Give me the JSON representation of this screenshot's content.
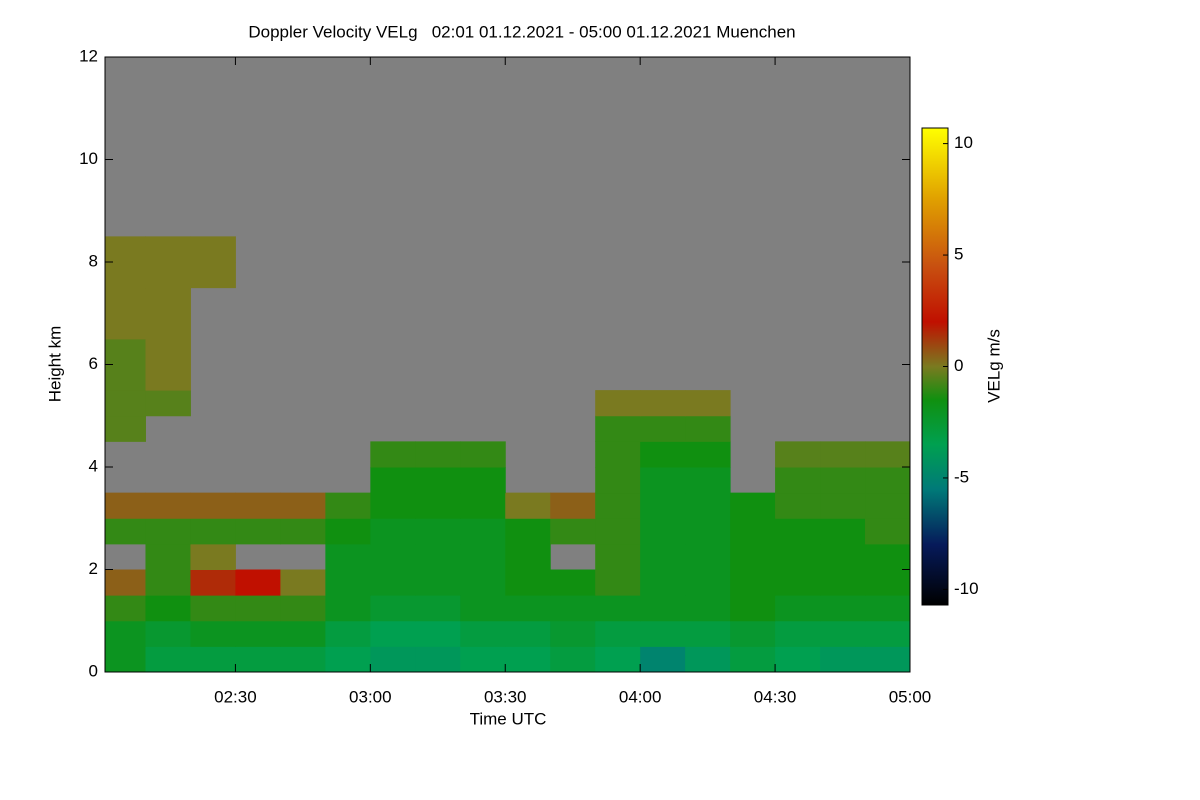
{
  "chart_data": {
    "type": "heatmap",
    "title": "Doppler Velocity VELg   02:01 01.12.2021 - 05:00 01.12.2021 Muenchen",
    "x_label": "Time UTC",
    "y_label": "Height km",
    "colorbar_label": "VELg m/s",
    "background_color": "#808080",
    "xlim": [
      121,
      300
    ],
    "xticks": [
      {
        "value": 150,
        "label": "02:30"
      },
      {
        "value": 180,
        "label": "03:00"
      },
      {
        "value": 210,
        "label": "03:30"
      },
      {
        "value": 240,
        "label": "04:00"
      },
      {
        "value": 270,
        "label": "04:30"
      },
      {
        "value": 300,
        "label": "05:00"
      }
    ],
    "ylim": [
      0,
      12
    ],
    "yticks": [
      0,
      2,
      4,
      6,
      8,
      10,
      12
    ],
    "clim": [
      -10.7,
      10.7
    ],
    "cticks": [
      -10,
      -5,
      0,
      5,
      10
    ],
    "colorscale": [
      [
        -10.7,
        "#000000"
      ],
      [
        -8,
        "#061a5a"
      ],
      [
        -5.5,
        "#007a78"
      ],
      [
        -3.5,
        "#00a050"
      ],
      [
        -1.5,
        "#109010"
      ],
      [
        0,
        "#7a7a20"
      ],
      [
        2,
        "#c01000"
      ],
      [
        4.5,
        "#c85010"
      ],
      [
        7.5,
        "#e0a000"
      ],
      [
        10.7,
        "#ffff00"
      ]
    ],
    "xbins": [
      121,
      130,
      140,
      150,
      160,
      170,
      180,
      190,
      200,
      210,
      220,
      230,
      240,
      250,
      260,
      270,
      280,
      290,
      300
    ],
    "ybins": [
      0,
      0.5,
      1,
      1.5,
      2,
      2.5,
      3,
      3.5,
      4,
      4.5,
      5,
      5.5,
      6,
      6.5,
      7,
      7.5,
      8,
      8.5
    ],
    "values": [
      [
        -2,
        -3,
        -3,
        -3,
        -3,
        -3.5,
        -4,
        -4,
        -3.5,
        -3.5,
        -3,
        -3.5,
        -5,
        -4,
        -3,
        -3.5,
        -4,
        -4
      ],
      [
        -2,
        -2.5,
        -2,
        -2,
        -2,
        -3,
        -3.5,
        -3.5,
        -3,
        -3,
        -2.5,
        -3,
        -3,
        -3,
        -2.5,
        -3,
        -3,
        -3
      ],
      [
        -1,
        -1.5,
        -1,
        -1,
        -1,
        -2,
        -2.5,
        -2.5,
        -2,
        -2,
        -2,
        -2,
        -2,
        -2,
        -1.5,
        -2,
        -2,
        -2
      ],
      [
        0.5,
        -1,
        1.5,
        2,
        0,
        -2,
        -2,
        -2,
        -2,
        -1.5,
        -1.5,
        -1,
        -2,
        -2,
        -1.5,
        -1.5,
        -1.5,
        -1.5
      ],
      [
        null,
        -1,
        0,
        null,
        null,
        -2,
        -2,
        -2,
        -2,
        -1.5,
        null,
        -1,
        -2,
        -2,
        -1.5,
        -1.5,
        -1.5,
        -1.5
      ],
      [
        -1,
        -1,
        -1,
        -1,
        -1,
        -1.5,
        -2,
        -2,
        -2,
        -1.5,
        -1,
        -1,
        -2,
        -2,
        -1.5,
        -1.5,
        -1.5,
        -1
      ],
      [
        0.5,
        0.5,
        0.5,
        0.5,
        0.5,
        -1,
        -1.5,
        -1.5,
        -1.5,
        0,
        0.5,
        -1,
        -2,
        -2,
        -1.5,
        -1,
        -1,
        -1
      ],
      [
        null,
        null,
        null,
        null,
        null,
        null,
        -1.5,
        -1.5,
        -1.5,
        null,
        null,
        -1,
        -2,
        -2,
        null,
        -1,
        -1,
        -1
      ],
      [
        null,
        null,
        null,
        null,
        null,
        null,
        -1,
        -1,
        -1,
        null,
        null,
        -1,
        -1.5,
        -1.5,
        null,
        -0.5,
        -0.5,
        -0.5
      ],
      [
        -0.5,
        null,
        null,
        null,
        null,
        null,
        null,
        null,
        null,
        null,
        null,
        -1,
        -1,
        -1,
        null,
        null,
        null,
        null
      ],
      [
        -0.5,
        -0.5,
        null,
        null,
        null,
        null,
        null,
        null,
        null,
        null,
        null,
        0,
        0,
        0,
        null,
        null,
        null,
        null
      ],
      [
        -0.5,
        0,
        null,
        null,
        null,
        null,
        null,
        null,
        null,
        null,
        null,
        null,
        null,
        null,
        null,
        null,
        null,
        null
      ],
      [
        -0.5,
        0,
        null,
        null,
        null,
        null,
        null,
        null,
        null,
        null,
        null,
        null,
        null,
        null,
        null,
        null,
        null,
        null
      ],
      [
        0,
        0,
        null,
        null,
        null,
        null,
        null,
        null,
        null,
        null,
        null,
        null,
        null,
        null,
        null,
        null,
        null,
        null
      ],
      [
        0,
        0,
        null,
        null,
        null,
        null,
        null,
        null,
        null,
        null,
        null,
        null,
        null,
        null,
        null,
        null,
        null,
        null
      ],
      [
        0,
        0,
        0,
        null,
        null,
        null,
        null,
        null,
        null,
        null,
        null,
        null,
        null,
        null,
        null,
        null,
        null,
        null
      ],
      [
        0,
        0,
        0,
        null,
        null,
        null,
        null,
        null,
        null,
        null,
        null,
        null,
        null,
        null,
        null,
        null,
        null,
        null
      ]
    ]
  }
}
